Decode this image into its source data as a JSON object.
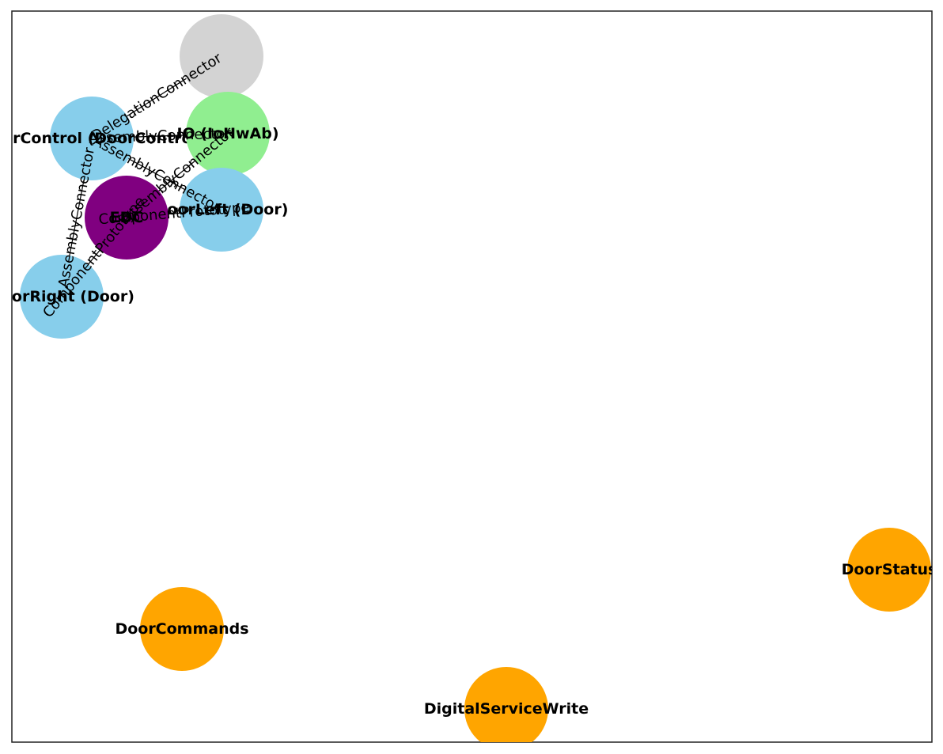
{
  "colors": {
    "background": "#ffffff",
    "frame": "#222222",
    "edge": "#000000",
    "component": "#87ceeb",
    "hardware": "#90ee90",
    "composition": "#800080",
    "interface": "#ffa500",
    "unlabeled": "#d3d3d3"
  },
  "nodes": [
    {
      "id": "n-gray",
      "label": "",
      "color_key": "unlabeled"
    },
    {
      "id": "n-doorcontrol",
      "label": "DoorControl (DoorControl)",
      "color_key": "component"
    },
    {
      "id": "n-io",
      "label": "IO (IoHwAb)",
      "color_key": "hardware"
    },
    {
      "id": "n-doorleft",
      "label": "DoorLeft (Door)",
      "color_key": "component"
    },
    {
      "id": "n-edc",
      "label": "EDC",
      "color_key": "composition"
    },
    {
      "id": "n-doorright",
      "label": "DoorRight (Door)",
      "color_key": "component"
    },
    {
      "id": "n-doorstatus",
      "label": "DoorStatus",
      "color_key": "interface"
    },
    {
      "id": "n-doorcommands",
      "label": "DoorCommands",
      "color_key": "interface"
    },
    {
      "id": "n-digitalservicewrite",
      "label": "DigitalServiceWrite",
      "color_key": "interface"
    }
  ],
  "edges": [
    {
      "id": "e-gray-doorcontrol",
      "from": "n-doorcontrol",
      "to": "n-gray",
      "label": "DelegationConnector"
    },
    {
      "id": "e-doorcontrol-io",
      "from": "n-doorcontrol",
      "to": "n-io",
      "label": "AssemblyConnector"
    },
    {
      "id": "e-doorcontrol-doorleft",
      "from": "n-doorcontrol",
      "to": "n-doorleft",
      "label": "AssemblyConnector"
    },
    {
      "id": "e-io-edc",
      "from": "n-edc",
      "to": "n-io",
      "label": "AssemblyConnector"
    },
    {
      "id": "e-doorcontrol-doorright",
      "from": "n-doorright",
      "to": "n-doorcontrol",
      "label": "AssemblyConnector"
    },
    {
      "id": "e-edc-doorright",
      "from": "n-doorright",
      "to": "n-edc",
      "label": "ComponentPrototype"
    },
    {
      "id": "e-edc-doorleft",
      "from": "n-edc",
      "to": "n-doorleft",
      "label": "ComponentPrototype"
    }
  ]
}
